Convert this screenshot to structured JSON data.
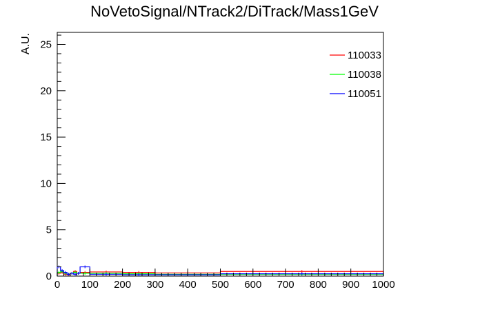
{
  "chart_data": {
    "type": "histogram",
    "title": "NoVetoSignal/NTrack2/DiTrack/Mass1GeV",
    "ylabel": "A.U.",
    "xlabel": "",
    "xlim": [
      0,
      1000
    ],
    "ylim": [
      0,
      26.3
    ],
    "grid": false,
    "legend_position": "top-right",
    "x_ticks": [
      "0",
      "100",
      "200",
      "300",
      "400",
      "500",
      "600",
      "700",
      "800",
      "900",
      "1000"
    ],
    "y_ticks": [
      "0",
      "5",
      "10",
      "15",
      "20",
      "25"
    ],
    "series": [
      {
        "name": "110033",
        "color": "#ff0000",
        "bins": [
          {
            "x0": 0,
            "x1": 10,
            "y": 0.3
          },
          {
            "x0": 10,
            "x1": 20,
            "y": 0.4
          },
          {
            "x0": 20,
            "x1": 30,
            "y": 0.2
          },
          {
            "x0": 30,
            "x1": 40,
            "y": 0.15
          },
          {
            "x0": 40,
            "x1": 50,
            "y": 0.3
          },
          {
            "x0": 50,
            "x1": 60,
            "y": 0.5
          },
          {
            "x0": 60,
            "x1": 70,
            "y": 0.3
          },
          {
            "x0": 70,
            "x1": 100,
            "y": 0.4
          },
          {
            "x0": 100,
            "x1": 200,
            "y": 0.45
          },
          {
            "x0": 200,
            "x1": 300,
            "y": 0.4
          },
          {
            "x0": 300,
            "x1": 500,
            "y": 0.35
          },
          {
            "x0": 500,
            "x1": 1000,
            "y": 0.5
          }
        ]
      },
      {
        "name": "110038",
        "color": "#00ff00",
        "bins": [
          {
            "x0": 0,
            "x1": 10,
            "y": 0.4
          },
          {
            "x0": 10,
            "x1": 20,
            "y": 0.5
          },
          {
            "x0": 20,
            "x1": 30,
            "y": 0.3
          },
          {
            "x0": 30,
            "x1": 40,
            "y": 0.2
          },
          {
            "x0": 40,
            "x1": 50,
            "y": 0.3
          },
          {
            "x0": 50,
            "x1": 60,
            "y": 0.4
          },
          {
            "x0": 60,
            "x1": 70,
            "y": 0.3
          },
          {
            "x0": 70,
            "x1": 100,
            "y": 0.3
          },
          {
            "x0": 100,
            "x1": 200,
            "y": 0.3
          },
          {
            "x0": 200,
            "x1": 300,
            "y": 0.25
          },
          {
            "x0": 300,
            "x1": 500,
            "y": 0.2
          },
          {
            "x0": 500,
            "x1": 1000,
            "y": 0.2
          }
        ]
      },
      {
        "name": "110051",
        "color": "#0000ff",
        "bins": [
          {
            "x0": 0,
            "x1": 10,
            "y": 1.0
          },
          {
            "x0": 10,
            "x1": 20,
            "y": 0.6
          },
          {
            "x0": 20,
            "x1": 30,
            "y": 0.4
          },
          {
            "x0": 30,
            "x1": 40,
            "y": 0.2
          },
          {
            "x0": 40,
            "x1": 50,
            "y": 0.3
          },
          {
            "x0": 50,
            "x1": 60,
            "y": 0.2
          },
          {
            "x0": 60,
            "x1": 70,
            "y": 0.3
          },
          {
            "x0": 70,
            "x1": 100,
            "y": 1.0
          },
          {
            "x0": 100,
            "x1": 200,
            "y": 0.2
          },
          {
            "x0": 200,
            "x1": 300,
            "y": 0.15
          },
          {
            "x0": 300,
            "x1": 500,
            "y": 0.15
          },
          {
            "x0": 500,
            "x1": 1000,
            "y": 0.25
          }
        ]
      }
    ]
  }
}
